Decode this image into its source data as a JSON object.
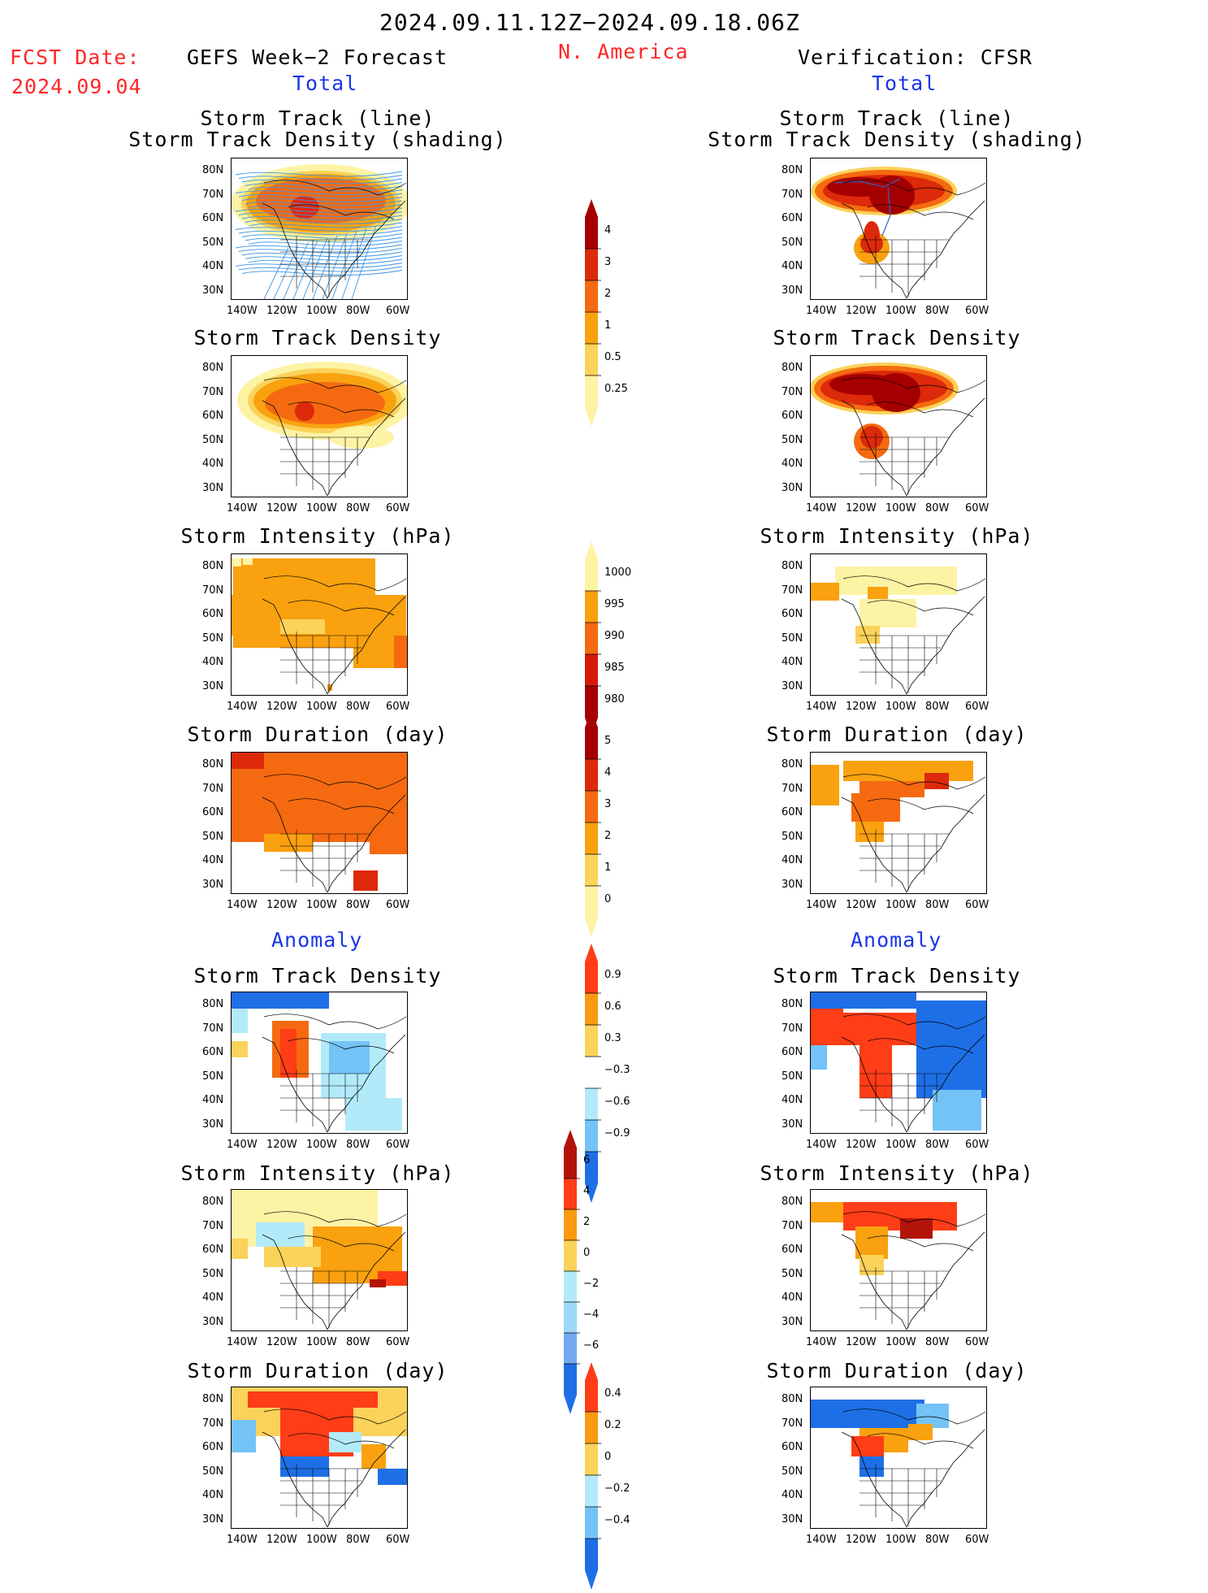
{
  "header": {
    "period": "2024.09.11.12Z−2024.09.18.06Z",
    "fcst_label": "FCST Date:",
    "fcst_date": "2024.09.04",
    "left_title": "GEFS Week−2 Forecast",
    "region": "N. America",
    "right_title": "Verification: CFSR",
    "left_total": "Total",
    "right_total": "Total",
    "left_anomaly": "Anomaly",
    "right_anomaly": "Anomaly"
  },
  "panels": {
    "track_line": "Storm Track (line)",
    "track_density_shading": "Storm Track Density (shading)",
    "density": "Storm Track Density",
    "intensity": "Storm Intensity (hPa)",
    "duration": "Storm Duration (day)"
  },
  "axes": {
    "lat_labels": [
      "80N",
      "70N",
      "60N",
      "50N",
      "40N",
      "30N"
    ],
    "lon_labels": [
      "140W",
      "120W",
      "100W",
      "80W",
      "60W"
    ]
  },
  "colorbars": {
    "density_total": {
      "labels": [
        "4",
        "3",
        "2",
        "1",
        "0.5",
        "0.25"
      ],
      "colors": [
        "#a50000",
        "#dc2a0a",
        "#f56a10",
        "#f9a10f",
        "#fbd25a",
        "#fdf3a4"
      ]
    },
    "intensity_total": {
      "labels": [
        "1000",
        "995",
        "990",
        "985",
        "980"
      ],
      "colors": [
        "#fdf3a4",
        "#f9a10f",
        "#f56a10",
        "#d8190a",
        "#a50000"
      ]
    },
    "duration_total": {
      "labels": [
        "5",
        "4",
        "3",
        "2",
        "1",
        "0"
      ],
      "colors": [
        "#a50000",
        "#dc2a0a",
        "#f56a10",
        "#f9a10f",
        "#fbd25a",
        "#fdf3a4"
      ]
    },
    "density_anom": {
      "labels": [
        "0.9",
        "0.6",
        "0.3",
        "−0.3",
        "−0.6",
        "−0.9"
      ],
      "colors": [
        "#ff3d17",
        "#f99a10",
        "#fbd25a",
        "#ffffff",
        "#b3eaf9",
        "#74c3f6",
        "#1e6fe6"
      ]
    },
    "intensity_anom": {
      "labels": [
        "6",
        "4",
        "2",
        "0",
        "−2",
        "−4",
        "−6"
      ],
      "colors": [
        "#b3140a",
        "#ff3d17",
        "#f99a10",
        "#fbd25a",
        "#b3eaf9",
        "#9cd8f7",
        "#74a9f0",
        "#1e6fe6"
      ]
    },
    "duration_anom": {
      "labels": [
        "0.4",
        "0.2",
        "0",
        "−0.2",
        "−0.4"
      ],
      "colors": [
        "#ff3d17",
        "#f99a10",
        "#fbd25a",
        "#b3eaf9",
        "#74c3f6",
        "#1e6fe6"
      ]
    }
  }
}
